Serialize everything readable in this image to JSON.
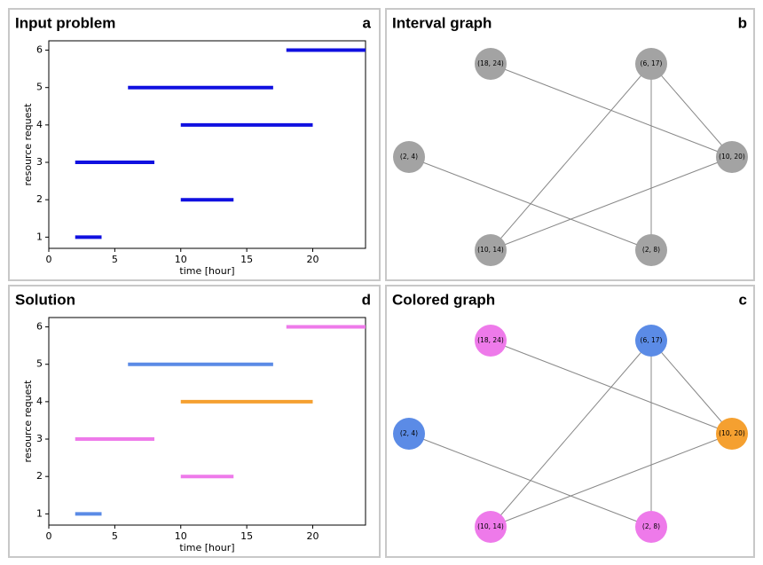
{
  "chart_data": [
    {
      "type": "interval",
      "title": "Input problem",
      "label": "a",
      "starts": [
        2,
        10,
        2,
        10,
        6,
        18
      ],
      "ends": [
        4,
        14,
        8,
        20,
        17,
        24
      ],
      "values": [
        1,
        2,
        3,
        4,
        5,
        6
      ],
      "colors": [
        "#1010e0",
        "#1010e0",
        "#1010e0",
        "#1010e0",
        "#1010e0",
        "#1010e0"
      ],
      "xlabel": "time [hour]",
      "ylabel": "resource request",
      "xlim": [
        0,
        24
      ],
      "ylim": [
        0.7,
        6.25
      ],
      "xticks": [
        0,
        5,
        10,
        15,
        20
      ],
      "yticks": [
        1,
        2,
        3,
        4,
        5,
        6
      ]
    },
    {
      "type": "interval",
      "title": "Solution",
      "label": "d",
      "starts": [
        2,
        10,
        2,
        10,
        6,
        18
      ],
      "ends": [
        4,
        14,
        8,
        20,
        17,
        24
      ],
      "values": [
        1,
        2,
        3,
        4,
        5,
        6
      ],
      "colors": [
        "#5b8be6",
        "#ee7aea",
        "#ee7aea",
        "#f5a030",
        "#5b8be6",
        "#ee7aea"
      ],
      "xlabel": "time [hour]",
      "ylabel": "resource request",
      "xlim": [
        0,
        24
      ],
      "ylim": [
        0.7,
        6.25
      ],
      "xticks": [
        0,
        5,
        10,
        15,
        20
      ],
      "yticks": [
        1,
        2,
        3,
        4,
        5,
        6
      ]
    }
  ],
  "graphs": [
    {
      "title": "Interval graph",
      "label": "b",
      "nodes": [
        {
          "label": "(18, 24)",
          "color": "#a3a3a3"
        },
        {
          "label": "(6, 17)",
          "color": "#a3a3a3"
        },
        {
          "label": "(2, 4)",
          "color": "#a3a3a3"
        },
        {
          "label": "(10, 20)",
          "color": "#a3a3a3"
        },
        {
          "label": "(10, 14)",
          "color": "#a3a3a3"
        },
        {
          "label": "(2, 8)",
          "color": "#a3a3a3"
        }
      ],
      "edges": [
        [
          0,
          3
        ],
        [
          1,
          3
        ],
        [
          1,
          4
        ],
        [
          1,
          5
        ],
        [
          2,
          5
        ],
        [
          4,
          3
        ]
      ]
    },
    {
      "title": "Colored graph",
      "label": "c",
      "nodes": [
        {
          "label": "(18, 24)",
          "color": "#ee7aea"
        },
        {
          "label": "(6, 17)",
          "color": "#5b8be6"
        },
        {
          "label": "(2, 4)",
          "color": "#5b8be6"
        },
        {
          "label": "(10, 20)",
          "color": "#f5a030"
        },
        {
          "label": "(10, 14)",
          "color": "#ee7aea"
        },
        {
          "label": "(2, 8)",
          "color": "#ee7aea"
        }
      ],
      "edges": [
        [
          0,
          3
        ],
        [
          1,
          3
        ],
        [
          1,
          4
        ],
        [
          1,
          5
        ],
        [
          2,
          5
        ],
        [
          4,
          3
        ]
      ]
    }
  ]
}
